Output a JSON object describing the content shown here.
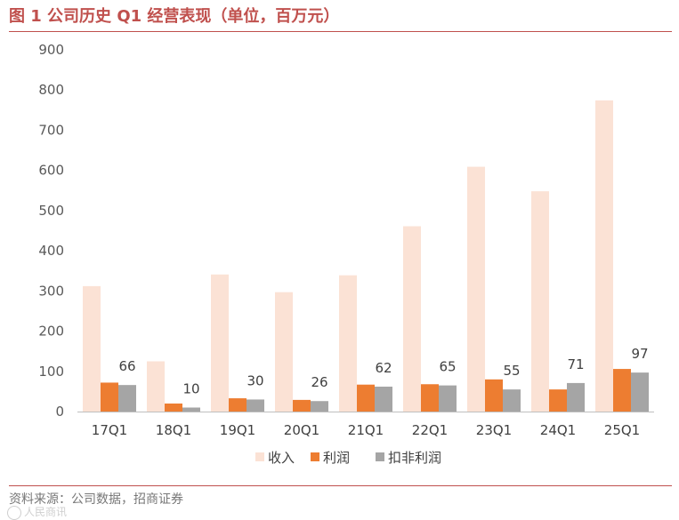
{
  "figure": {
    "title": "图 1  公司历史 Q1 经营表现（单位，百万元）",
    "source": "资料来源：公司数据，招商证券",
    "watermark": "人民商讯"
  },
  "colors": {
    "title": "#c0504d",
    "revenue": "#fbe2d5",
    "profit": "#ed7d31",
    "nonrecurring": "#a5a5a5",
    "axis": "#bfbfbf"
  },
  "chart_data": {
    "type": "bar",
    "title": "公司历史 Q1 经营表现（单位，百万元）",
    "xlabel": "",
    "ylabel": "",
    "ylim": [
      0,
      900
    ],
    "yticks": [
      0,
      100,
      200,
      300,
      400,
      500,
      600,
      700,
      800,
      900
    ],
    "grid": false,
    "legend_position": "bottom",
    "categories": [
      "17Q1",
      "18Q1",
      "19Q1",
      "20Q1",
      "21Q1",
      "22Q1",
      "23Q1",
      "24Q1",
      "25Q1"
    ],
    "series": [
      {
        "name": "收入",
        "values": [
          312,
          125,
          341,
          297,
          339,
          461,
          609,
          548,
          774
        ]
      },
      {
        "name": "利润",
        "values": [
          72,
          20,
          33,
          29,
          67,
          68,
          80,
          55,
          106
        ]
      },
      {
        "name": "扣非利润",
        "values": [
          66,
          10,
          30,
          26,
          62,
          65,
          55,
          71,
          97
        ]
      }
    ],
    "data_labels": {
      "series": "扣非利润",
      "values": [
        "66",
        "10",
        "30",
        "26",
        "62",
        "65",
        "55",
        "71",
        "97"
      ]
    }
  }
}
